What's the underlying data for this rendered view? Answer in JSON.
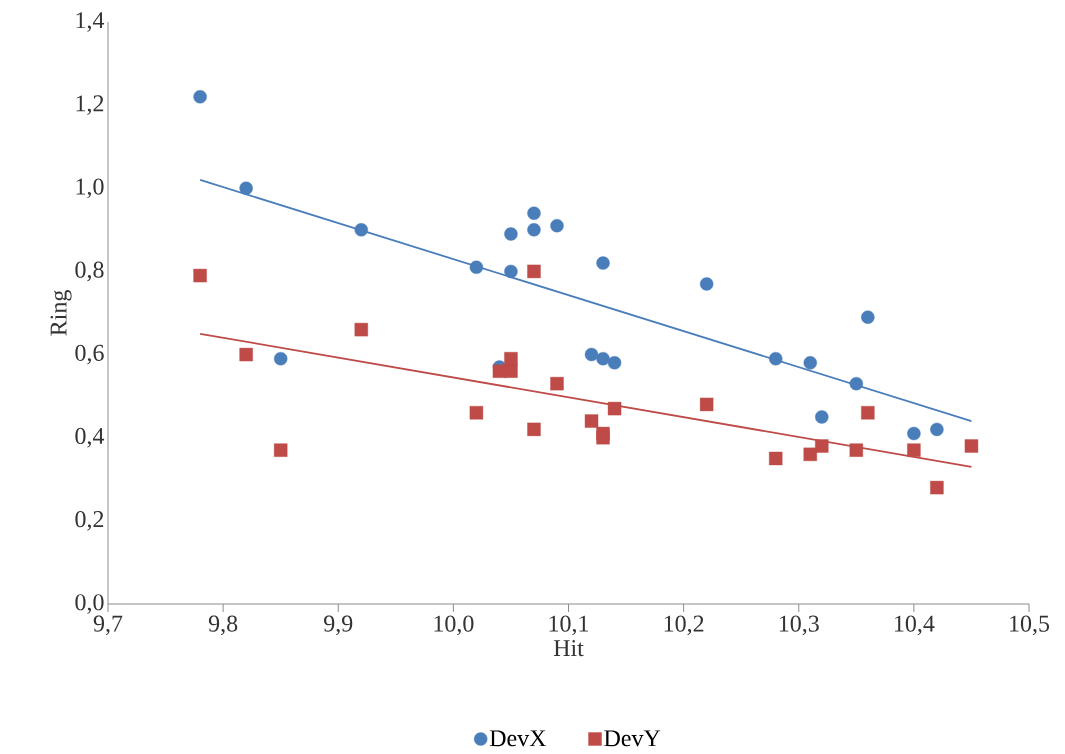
{
  "chart_data": {
    "type": "scatter",
    "xlabel": "Hit",
    "ylabel": "Ring",
    "xlim": [
      9.7,
      10.5
    ],
    "ylim": [
      0,
      1.4
    ],
    "xticks": [
      {
        "value": 9.7,
        "label": "9,7"
      },
      {
        "value": 9.8,
        "label": "9,8"
      },
      {
        "value": 9.9,
        "label": "9,9"
      },
      {
        "value": 10.0,
        "label": "10,0"
      },
      {
        "value": 10.1,
        "label": "10,1"
      },
      {
        "value": 10.2,
        "label": "10,2"
      },
      {
        "value": 10.3,
        "label": "10,3"
      },
      {
        "value": 10.4,
        "label": "10,4"
      },
      {
        "value": 10.5,
        "label": "10,5"
      }
    ],
    "yticks": [
      {
        "value": 0,
        "label": "0,0"
      },
      {
        "value": 0.2,
        "label": "0,2"
      },
      {
        "value": 0.4,
        "label": "0,4"
      },
      {
        "value": 0.6,
        "label": "0,6"
      },
      {
        "value": 0.8,
        "label": "0,8"
      },
      {
        "value": 1.0,
        "label": "1,0"
      },
      {
        "value": 1.2,
        "label": "1,2"
      },
      {
        "value": 1.4,
        "label": "1,4"
      }
    ],
    "legend": "bottom",
    "grid": false,
    "series": [
      {
        "name": "DevX",
        "color": "#4a7ebb",
        "marker": "circle",
        "x": [
          9.78,
          9.82,
          9.85,
          9.92,
          10.02,
          10.04,
          10.05,
          10.05,
          10.07,
          10.07,
          10.09,
          10.12,
          10.13,
          10.13,
          10.14,
          10.22,
          10.28,
          10.31,
          10.32,
          10.35,
          10.36,
          10.4,
          10.42
        ],
        "values": [
          1.22,
          1.0,
          0.59,
          0.9,
          0.81,
          0.57,
          0.89,
          0.8,
          0.94,
          0.9,
          0.91,
          0.6,
          0.82,
          0.59,
          0.58,
          0.77,
          0.59,
          0.58,
          0.45,
          0.53,
          0.69,
          0.41,
          0.42
        ]
      },
      {
        "name": "DevY",
        "color": "#be4b48",
        "marker": "square",
        "x": [
          9.78,
          9.82,
          9.85,
          9.92,
          10.02,
          10.04,
          10.05,
          10.05,
          10.07,
          10.07,
          10.09,
          10.12,
          10.13,
          10.13,
          10.14,
          10.22,
          10.28,
          10.31,
          10.32,
          10.35,
          10.36,
          10.4,
          10.42,
          10.45
        ],
        "values": [
          0.79,
          0.6,
          0.37,
          0.66,
          0.46,
          0.56,
          0.59,
          0.56,
          0.8,
          0.42,
          0.53,
          0.44,
          0.41,
          0.4,
          0.47,
          0.48,
          0.35,
          0.36,
          0.38,
          0.37,
          0.46,
          0.37,
          0.28,
          0.38
        ]
      },
      {
        "type": "line",
        "color": "#4a7ebb",
        "marker": "none",
        "x": [
          9.78,
          10.45
        ],
        "values": [
          1.02,
          0.44
        ]
      },
      {
        "type": "line",
        "color": "#be4b48",
        "marker": "none",
        "x": [
          9.78,
          10.45
        ],
        "values": [
          0.65,
          0.33
        ]
      }
    ]
  }
}
